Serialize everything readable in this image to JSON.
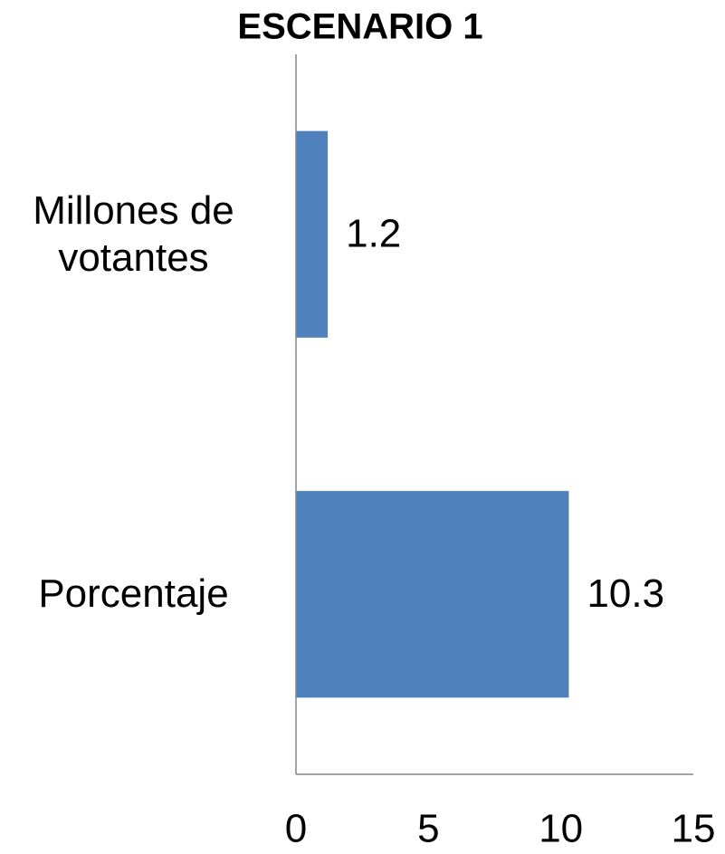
{
  "chart_data": {
    "type": "barh",
    "title": "ESCENARIO 1",
    "categories": [
      "Millones de votantes",
      "Porcentaje"
    ],
    "values": [
      1.2,
      10.3
    ],
    "color": "#4f81bd",
    "xlim": [
      0,
      15
    ],
    "xticks": [
      0,
      5,
      10,
      15
    ],
    "grid": false
  }
}
